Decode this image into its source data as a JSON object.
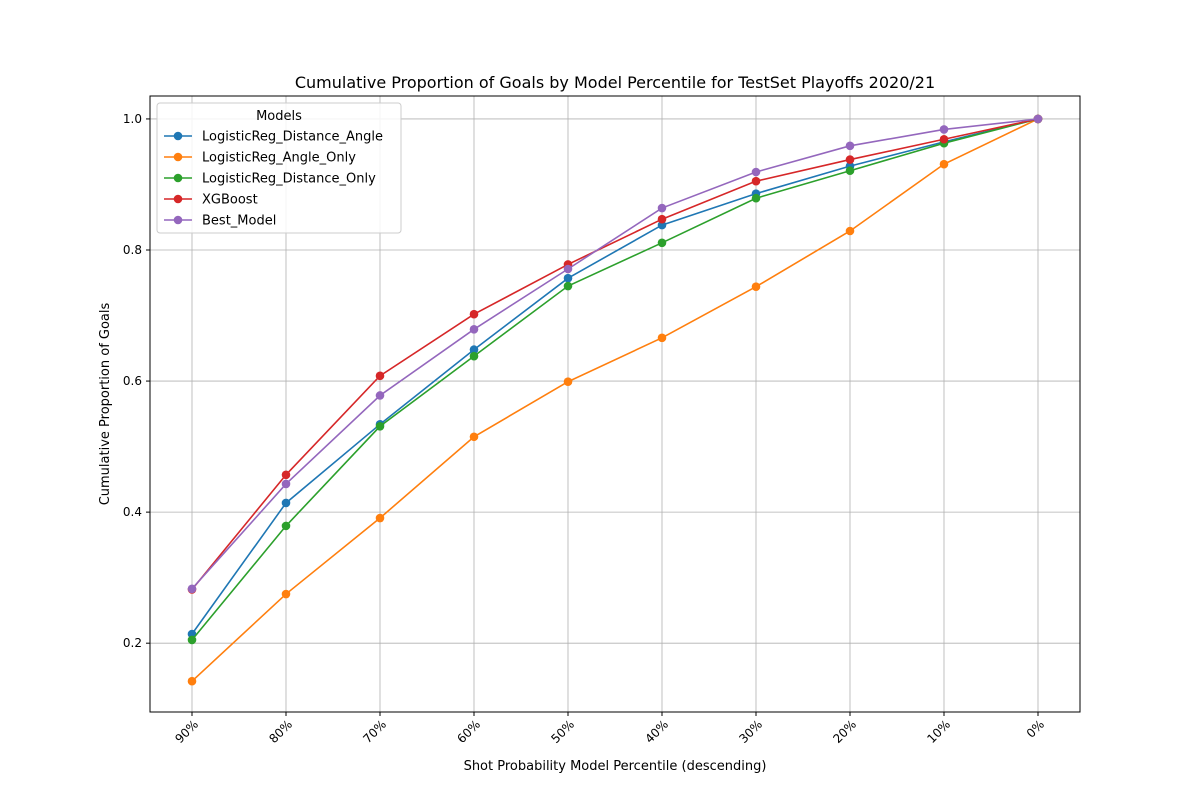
{
  "chart_data": {
    "type": "line",
    "title": "Cumulative Proportion of Goals by Model Percentile for TestSet Playoffs 2020/21",
    "xlabel": "Shot Probability Model Percentile (descending)",
    "ylabel": "Cumulative Proportion of Goals",
    "categories": [
      "90%",
      "80%",
      "70%",
      "60%",
      "50%",
      "40%",
      "30%",
      "20%",
      "10%",
      "0%"
    ],
    "yticks": [
      "0.2",
      "0.4",
      "0.6",
      "0.8",
      "1.0"
    ],
    "ylim": [
      0.095,
      1.035
    ],
    "grid": true,
    "legend": {
      "title": "Models",
      "placement": "upper-left"
    },
    "series": [
      {
        "name": "LogisticReg_Distance_Angle",
        "color": "#1f77b4",
        "values": [
          0.214,
          0.414,
          0.534,
          0.648,
          0.757,
          0.838,
          0.886,
          0.928,
          0.965,
          1.0
        ]
      },
      {
        "name": "LogisticReg_Angle_Only",
        "color": "#ff7f0e",
        "values": [
          0.142,
          0.275,
          0.391,
          0.515,
          0.599,
          0.666,
          0.744,
          0.829,
          0.931,
          1.0
        ]
      },
      {
        "name": "LogisticReg_Distance_Only",
        "color": "#2ca02c",
        "values": [
          0.205,
          0.379,
          0.531,
          0.638,
          0.745,
          0.811,
          0.879,
          0.921,
          0.963,
          1.0
        ]
      },
      {
        "name": "XGBoost",
        "color": "#d62728",
        "values": [
          0.282,
          0.457,
          0.608,
          0.702,
          0.778,
          0.847,
          0.905,
          0.938,
          0.969,
          1.0
        ]
      },
      {
        "name": "Best_Model",
        "color": "#9467bd",
        "values": [
          0.283,
          0.443,
          0.578,
          0.679,
          0.771,
          0.864,
          0.919,
          0.959,
          0.984,
          1.0
        ]
      }
    ]
  }
}
